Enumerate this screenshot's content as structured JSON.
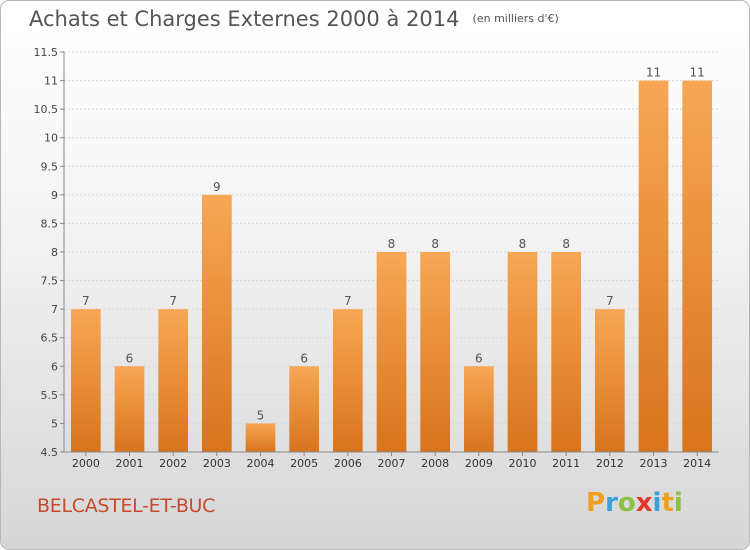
{
  "header": {
    "title": "Achats et Charges Externes 2000 à 2014",
    "subtitle": "(en milliers d'€)"
  },
  "commune": "BELCASTEL-ET-BUC",
  "brand": {
    "letters": [
      "P",
      "r",
      "o",
      "x",
      "i",
      "t",
      "i"
    ],
    "colors": [
      "#f0a020",
      "#3aa0d8",
      "#8cc040",
      "#e03a2a",
      "#3aa0d8",
      "#f0a020",
      "#8cc040"
    ]
  },
  "colors": {
    "bar_top": "#f7a755",
    "bar_bottom": "#d8741c",
    "title": "#555555",
    "commune": "#c84a2a"
  },
  "chart_data": {
    "type": "bar",
    "categories": [
      "2000",
      "2001",
      "2002",
      "2003",
      "2004",
      "2005",
      "2006",
      "2007",
      "2008",
      "2009",
      "2010",
      "2011",
      "2012",
      "2013",
      "2014"
    ],
    "values": [
      7,
      6,
      7,
      9,
      5,
      6,
      7,
      8,
      8,
      6,
      8,
      8,
      7,
      11,
      11
    ],
    "ylim": [
      4.5,
      11.5
    ],
    "yticks": [
      4.5,
      5,
      5.5,
      6,
      6.5,
      7,
      7.5,
      8,
      8.5,
      9,
      9.5,
      10,
      10.5,
      11,
      11.5
    ],
    "grid": true,
    "title": "Achats et Charges Externes 2000 à 2014",
    "xlabel": "",
    "ylabel": ""
  }
}
